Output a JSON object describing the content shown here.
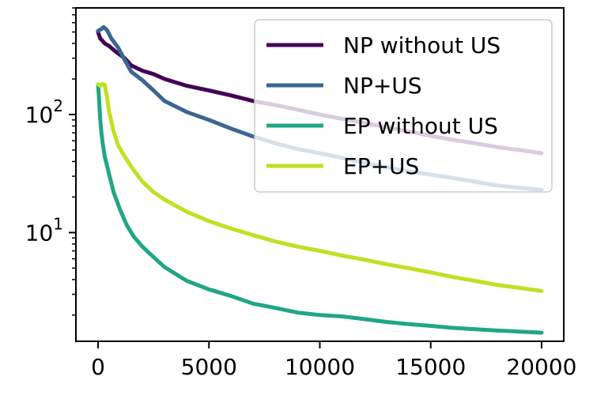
{
  "chart_data": {
    "type": "line",
    "title": "",
    "xlabel": "",
    "ylabel": "",
    "xlim": [
      -1000,
      21000
    ],
    "ylim": [
      1.2,
      800
    ],
    "yscale": "log",
    "xticks": [
      0,
      5000,
      10000,
      15000,
      20000
    ],
    "xtick_labels": [
      "0",
      "5000",
      "10000",
      "15000",
      "20000"
    ],
    "yticks_major": [
      {
        "value": 10,
        "base": "10",
        "exp": "1"
      },
      {
        "value": 100,
        "base": "10",
        "exp": "2"
      }
    ],
    "legend_position": "upper right",
    "grid": false,
    "series": [
      {
        "name": "NP without US",
        "color": "#440154",
        "x": [
          0,
          100,
          200,
          300,
          500,
          800,
          1200,
          1500,
          2000,
          2500,
          3000,
          4000,
          5000,
          6000,
          7000,
          8000,
          9000,
          10000,
          11000,
          12000,
          13000,
          14000,
          15000,
          16000,
          17000,
          18000,
          19000,
          20000
        ],
        "y": [
          500,
          440,
          420,
          400,
          380,
          340,
          300,
          260,
          235,
          220,
          200,
          175,
          160,
          145,
          130,
          120,
          110,
          100,
          92,
          85,
          78,
          72,
          66,
          61,
          57,
          53,
          50,
          47
        ]
      },
      {
        "name": "NP+US",
        "color": "#3b6592",
        "x": [
          0,
          150,
          250,
          400,
          600,
          900,
          1200,
          1500,
          2000,
          2500,
          3000,
          4000,
          5000,
          6000,
          7000,
          8000,
          9000,
          10000,
          11000,
          12000,
          13000,
          14000,
          15000,
          16000,
          17000,
          18000,
          19000,
          20000
        ],
        "y": [
          510,
          530,
          550,
          520,
          440,
          370,
          290,
          230,
          195,
          160,
          130,
          105,
          90,
          76,
          65,
          57,
          51,
          47,
          43,
          39,
          36,
          33,
          31,
          29,
          27,
          25,
          24,
          23
        ]
      },
      {
        "name": "EP without US",
        "color": "#21a685",
        "x": [
          0,
          30,
          60,
          100,
          150,
          200,
          300,
          500,
          700,
          1000,
          1300,
          1600,
          2000,
          2500,
          3000,
          4000,
          5000,
          6000,
          7000,
          8000,
          9000,
          10000,
          11000,
          12000,
          13000,
          14000,
          15000,
          16000,
          17000,
          18000,
          19000,
          20000
        ],
        "y": [
          180,
          150,
          120,
          90,
          70,
          58,
          44,
          31,
          22,
          15.5,
          11.5,
          9.3,
          7.6,
          6.2,
          5.1,
          3.9,
          3.3,
          2.9,
          2.5,
          2.3,
          2.1,
          2.0,
          1.95,
          1.85,
          1.75,
          1.68,
          1.62,
          1.56,
          1.52,
          1.48,
          1.45,
          1.42
        ]
      },
      {
        "name": "EP+US",
        "color": "#c2df23",
        "x": [
          0,
          100,
          200,
          300,
          400,
          500,
          700,
          900,
          1200,
          1600,
          2000,
          2500,
          3000,
          4000,
          5000,
          6000,
          7000,
          8000,
          9000,
          10000,
          11000,
          12000,
          13000,
          14000,
          15000,
          16000,
          17000,
          18000,
          19000,
          20000
        ],
        "y": [
          180,
          175,
          182,
          178,
          140,
          105,
          72,
          55,
          44,
          34,
          27,
          22,
          19,
          15,
          12.5,
          10.8,
          9.5,
          8.4,
          7.6,
          7.0,
          6.4,
          5.9,
          5.4,
          5.0,
          4.6,
          4.2,
          3.9,
          3.6,
          3.4,
          3.2
        ]
      }
    ]
  }
}
